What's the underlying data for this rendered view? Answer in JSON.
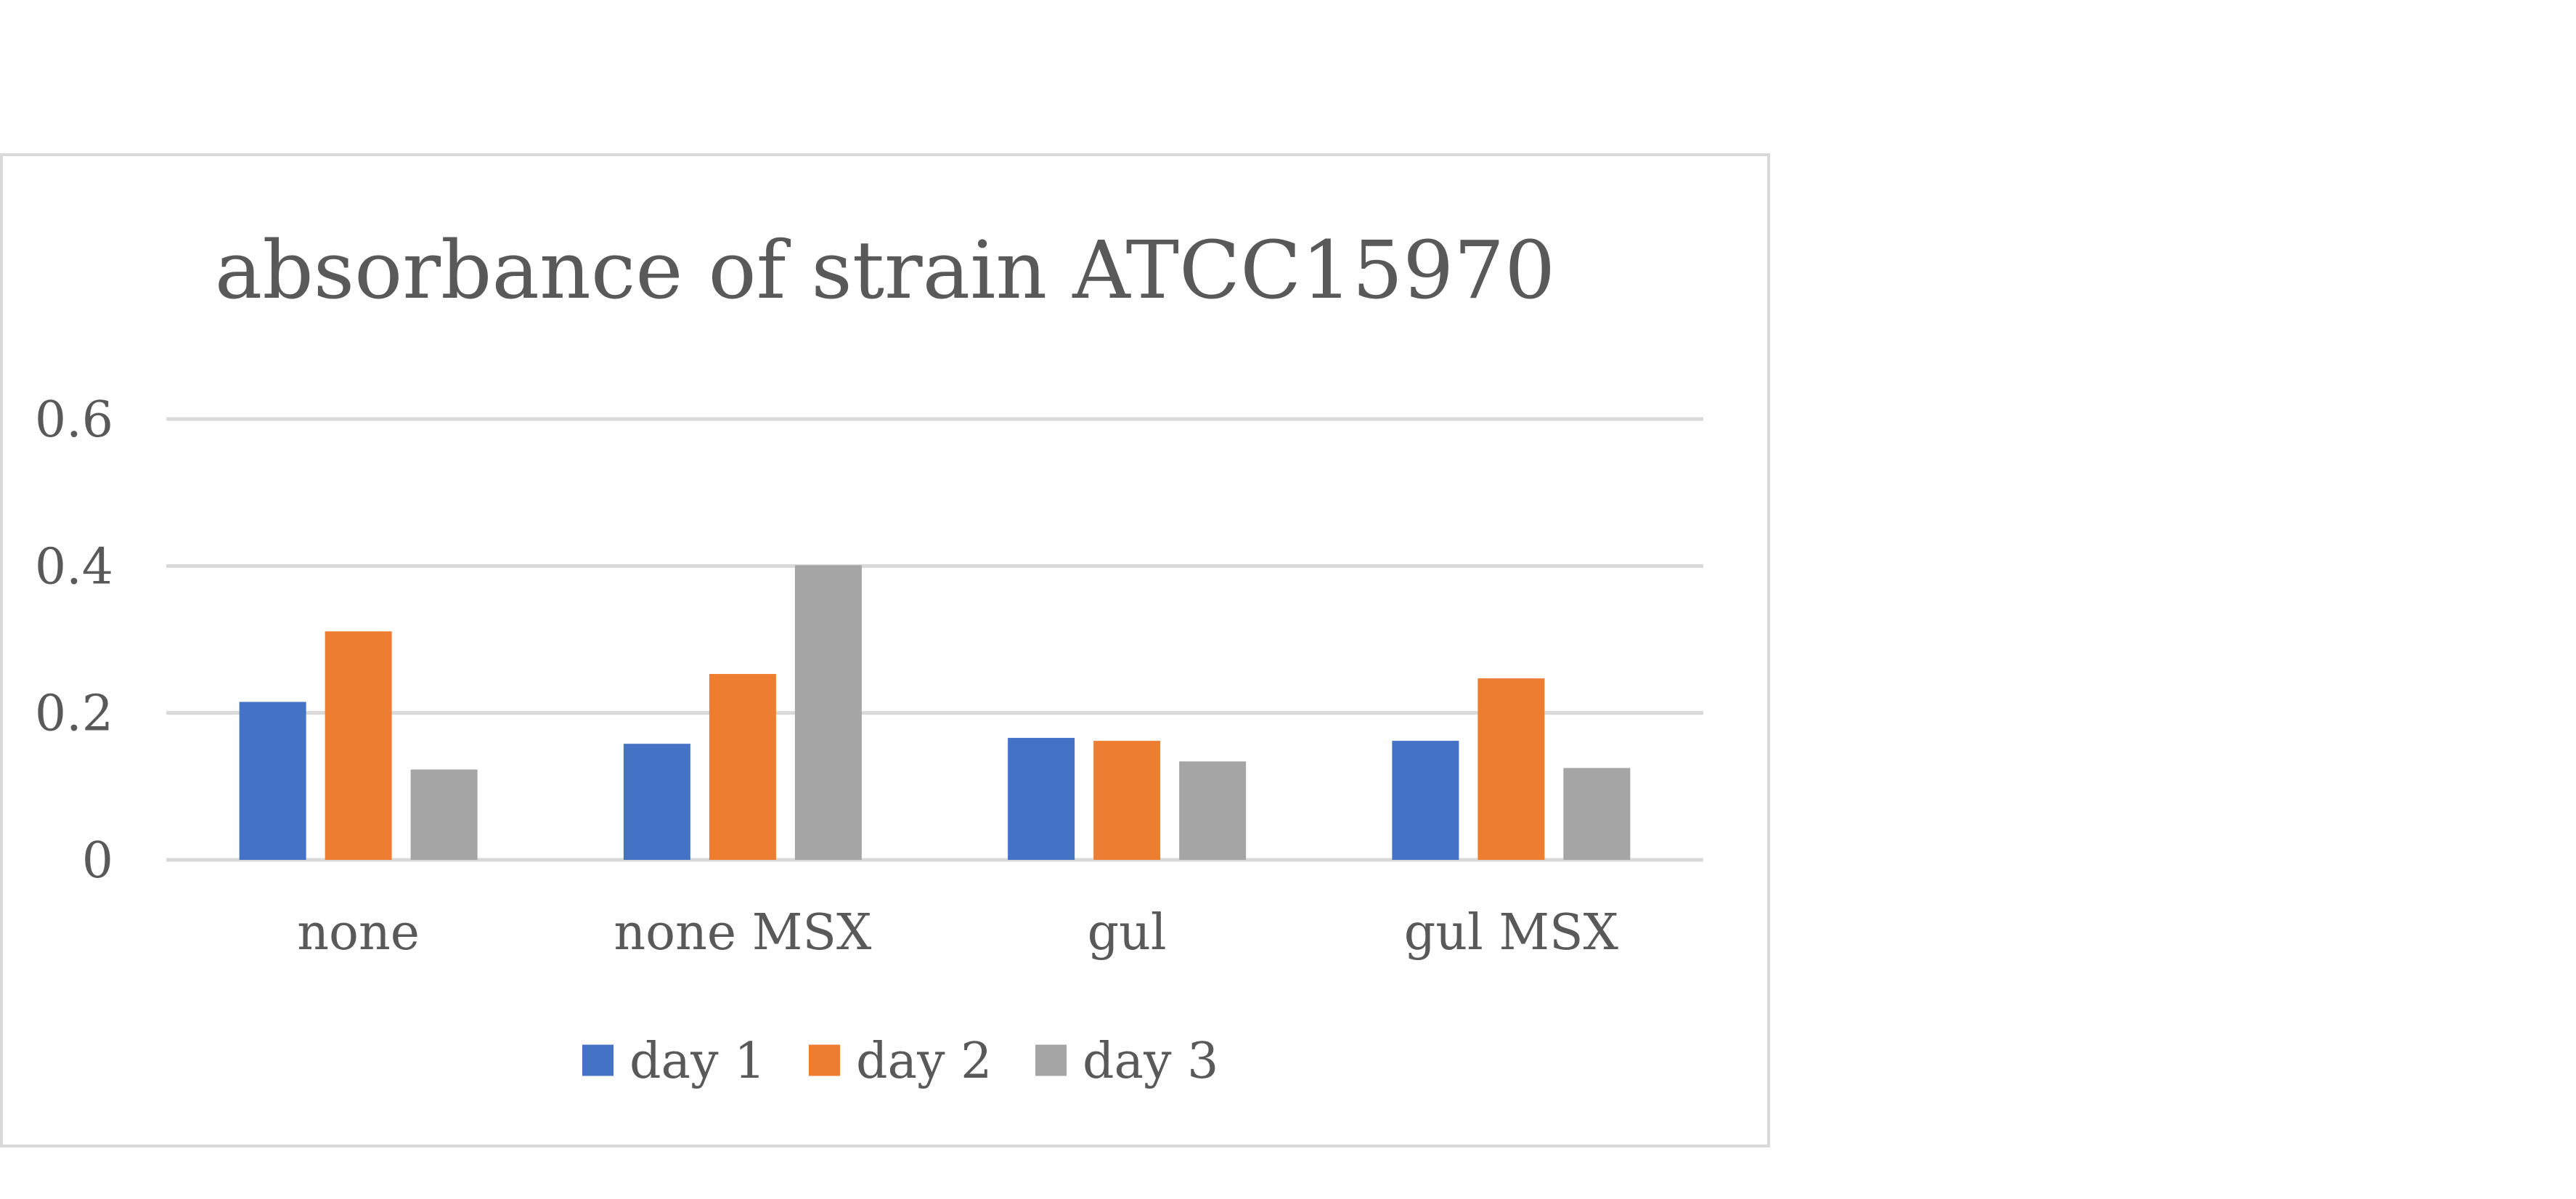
{
  "chart_data": {
    "type": "bar",
    "title": "absorbance of strain ATCC15970",
    "xlabel": "",
    "ylabel": "",
    "categories": [
      "none",
      "none MSX",
      "gul",
      "gul MSX"
    ],
    "series": [
      {
        "name": "day 1",
        "color": "#4472c4",
        "values": [
          0.215,
          0.158,
          0.166,
          0.162
        ]
      },
      {
        "name": "day 2",
        "color": "#ed7d31",
        "values": [
          0.311,
          0.253,
          0.162,
          0.247
        ]
      },
      {
        "name": "day 3",
        "color": "#a5a5a5",
        "values": [
          0.123,
          0.401,
          0.134,
          0.125
        ]
      }
    ],
    "ylim": [
      0,
      0.6
    ],
    "yticks": [
      {
        "value": 0,
        "label": "0"
      },
      {
        "value": 0.2,
        "label": "0.2"
      },
      {
        "value": 0.4,
        "label": "0.4"
      },
      {
        "value": 0.6,
        "label": "0.6"
      }
    ],
    "grid": true,
    "gridline_color": "#d9d9d9",
    "legend_position": "bottom"
  }
}
